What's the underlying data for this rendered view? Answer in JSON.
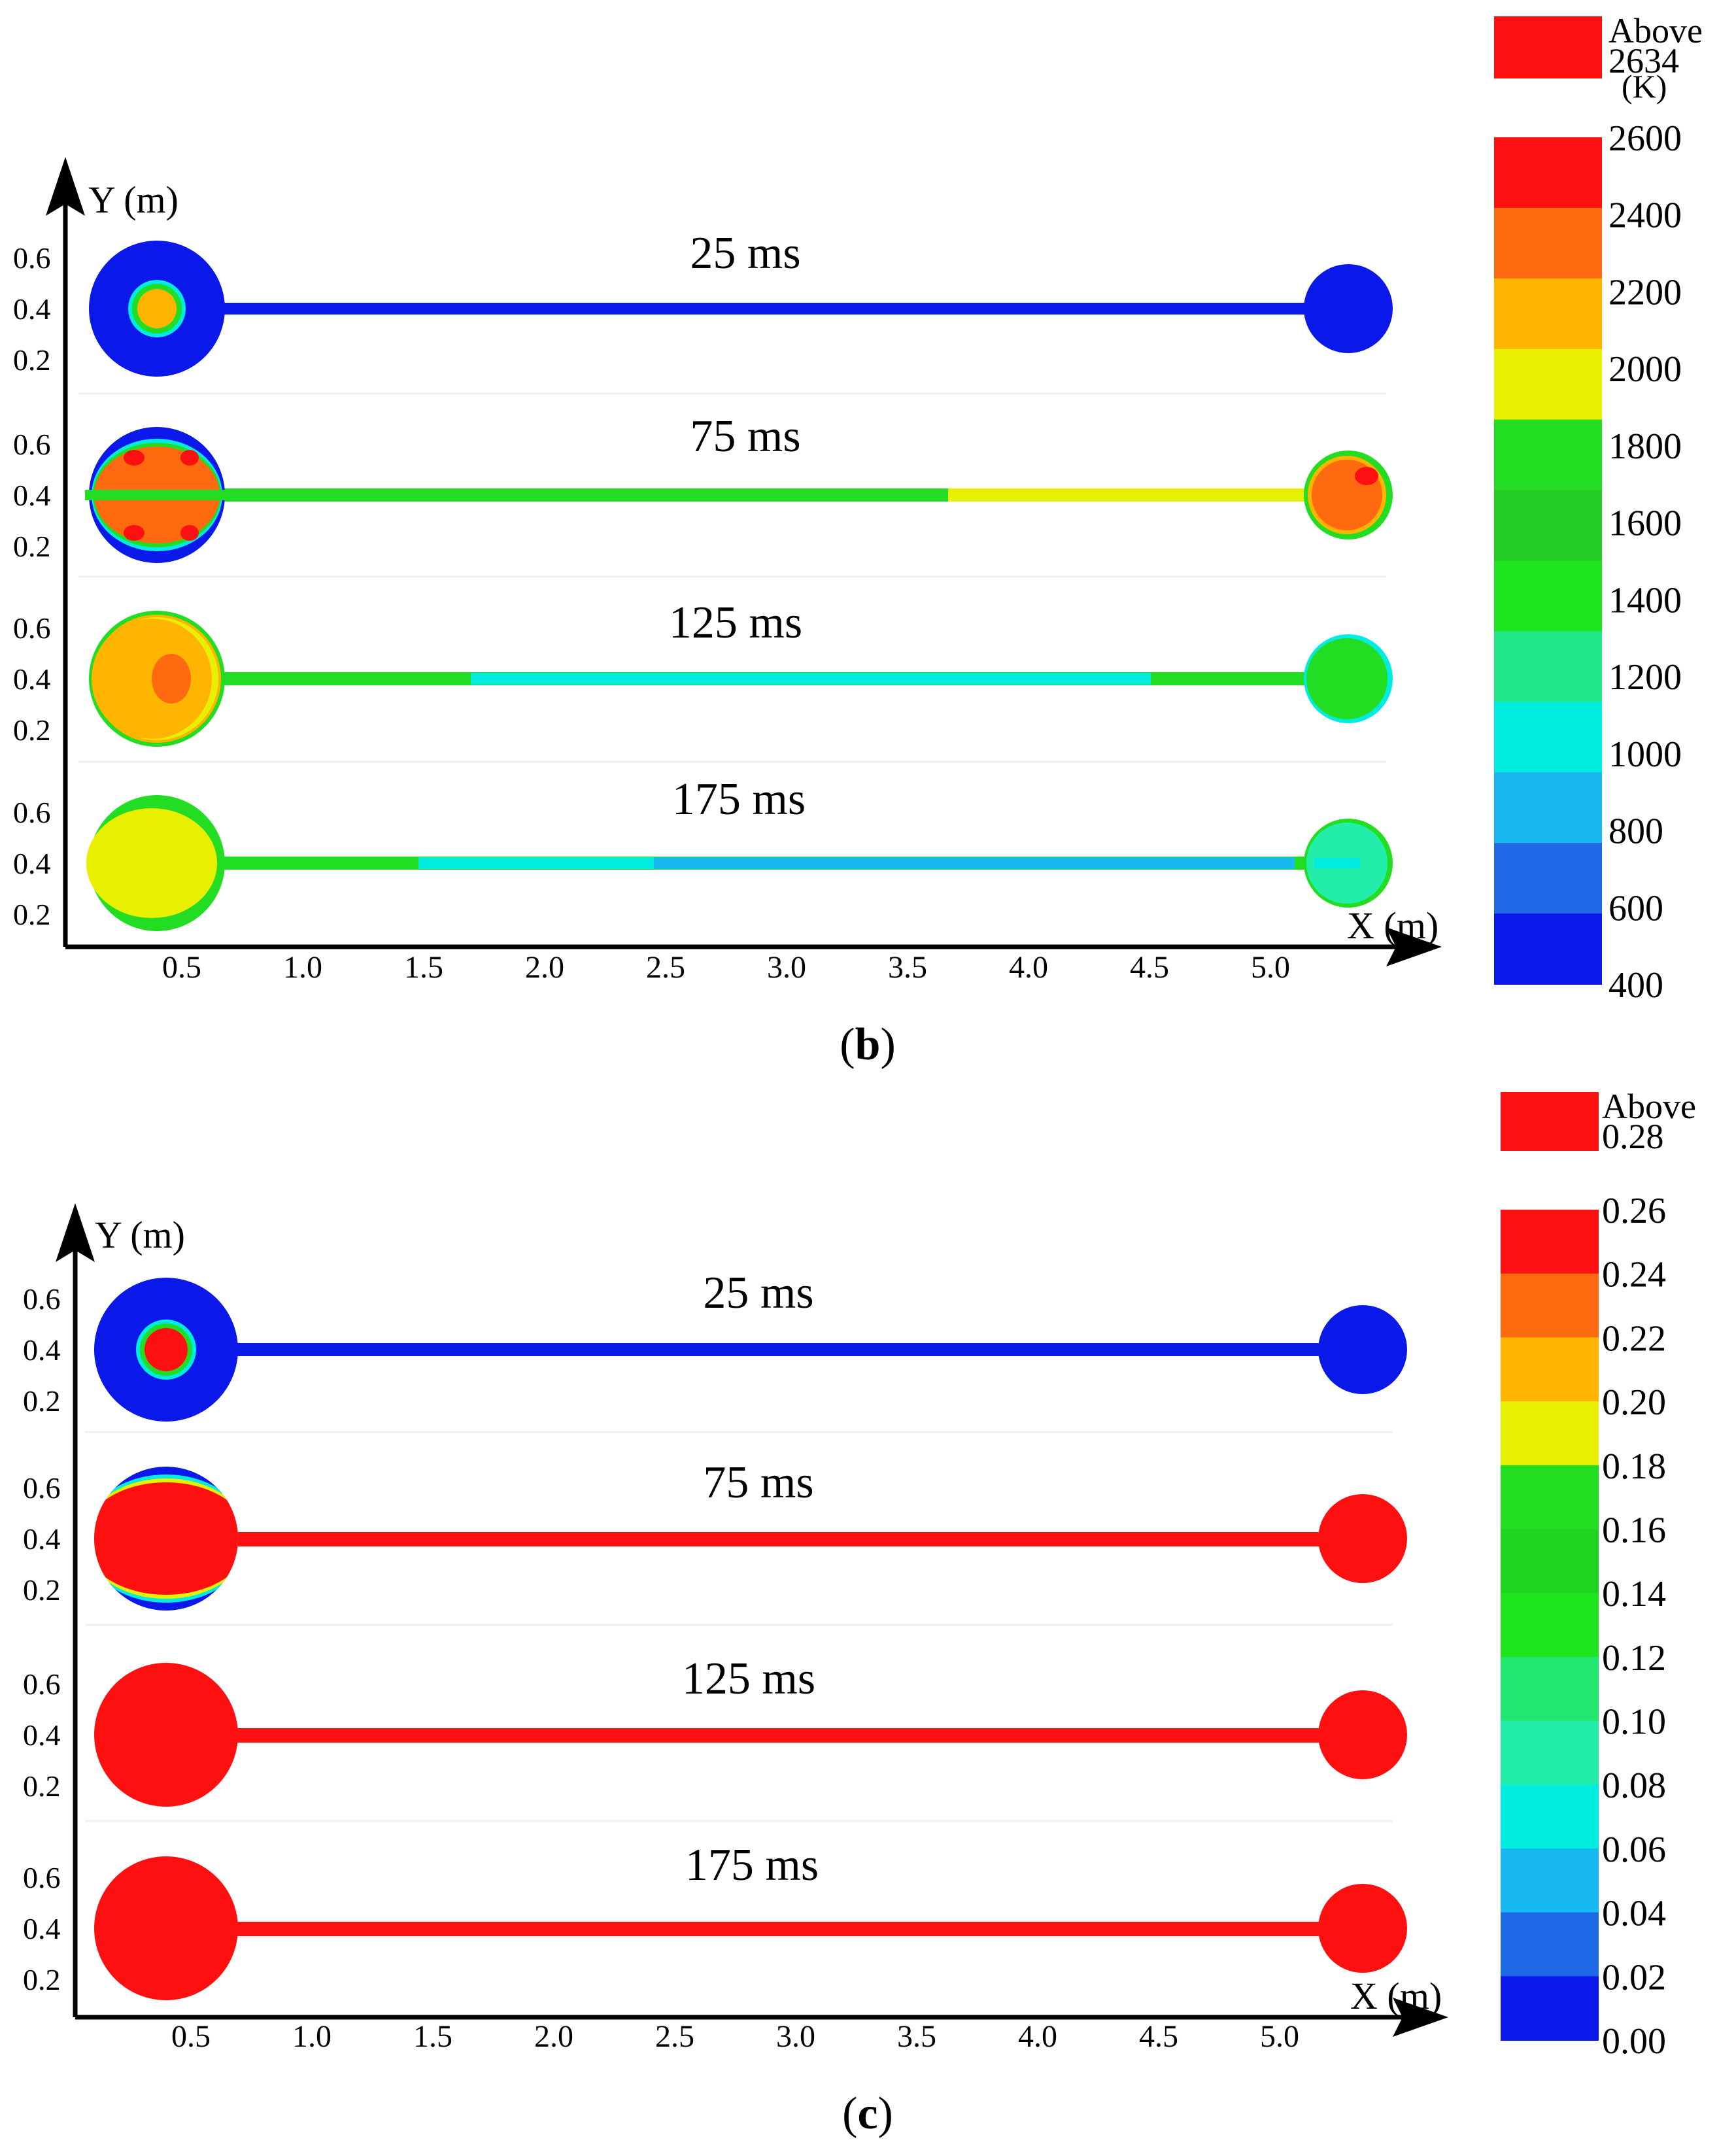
{
  "panels": [
    {
      "label": "b",
      "y_axis_label": "Y (m)",
      "x_axis_label": "X (m)",
      "x_ticks": [
        "0.5",
        "1.0",
        "1.5",
        "2.0",
        "2.5",
        "3.0",
        "3.5",
        "4.0",
        "4.5",
        "5.0"
      ],
      "y_ticks": [
        "0.6",
        "0.4",
        "0.2"
      ],
      "times": [
        "25 ms",
        "75 ms",
        "125 ms",
        "175 ms"
      ],
      "legend": {
        "above_lines": [
          "Above",
          "2634"
        ],
        "unit": "(K)",
        "above_color": "#ff1010",
        "levels": [
          "2600",
          "2400",
          "2200",
          "2000",
          "1800",
          "1600",
          "1400",
          "1200",
          "1000",
          "800",
          "600",
          "400"
        ],
        "colors": [
          "#ff1010",
          "#ff6a10",
          "#ffb400",
          "#e6f000",
          "#22dd22",
          "#22cc22",
          "#1fe51f",
          "#22e88a",
          "#00ece0",
          "#18b8f0",
          "#1e6ae6",
          "#0a18ea"
        ]
      }
    },
    {
      "label": "c",
      "y_axis_label": "Y (m)",
      "x_axis_label": "X (m)",
      "x_ticks": [
        "0.5",
        "1.0",
        "1.5",
        "2.0",
        "2.5",
        "3.0",
        "3.5",
        "4.0",
        "4.5",
        "5.0"
      ],
      "y_ticks": [
        "0.6",
        "0.4",
        "0.2"
      ],
      "times": [
        "25 ms",
        "75 ms",
        "125 ms",
        "175 ms"
      ],
      "legend": {
        "above_lines": [
          "Above",
          "0.28"
        ],
        "above_color": "#ff1010",
        "levels": [
          "0.26",
          "0.24",
          "0.22",
          "0.20",
          "0.18",
          "0.16",
          "0.14",
          "0.12",
          "0.10",
          "0.08",
          "0.06",
          "0.04",
          "0.02",
          "0.00"
        ],
        "colors": [
          "#ff1010",
          "#ff6a10",
          "#ffb400",
          "#e6f000",
          "#22dd22",
          "#1fd41f",
          "#1fe51f",
          "#22e870",
          "#22eeaa",
          "#00ece0",
          "#18b8f0",
          "#1e6ae6",
          "#0a18ea"
        ]
      }
    }
  ],
  "colors": {
    "blue": "#0a18ea",
    "red": "#ff1010",
    "orange": "#ff6a10",
    "amber": "#ffb400",
    "yellow": "#e6f000",
    "green": "#22dd22",
    "cyan": "#00ece0",
    "sky": "#18b8f0",
    "teal": "#22e88a",
    "axis": "#000000"
  }
}
